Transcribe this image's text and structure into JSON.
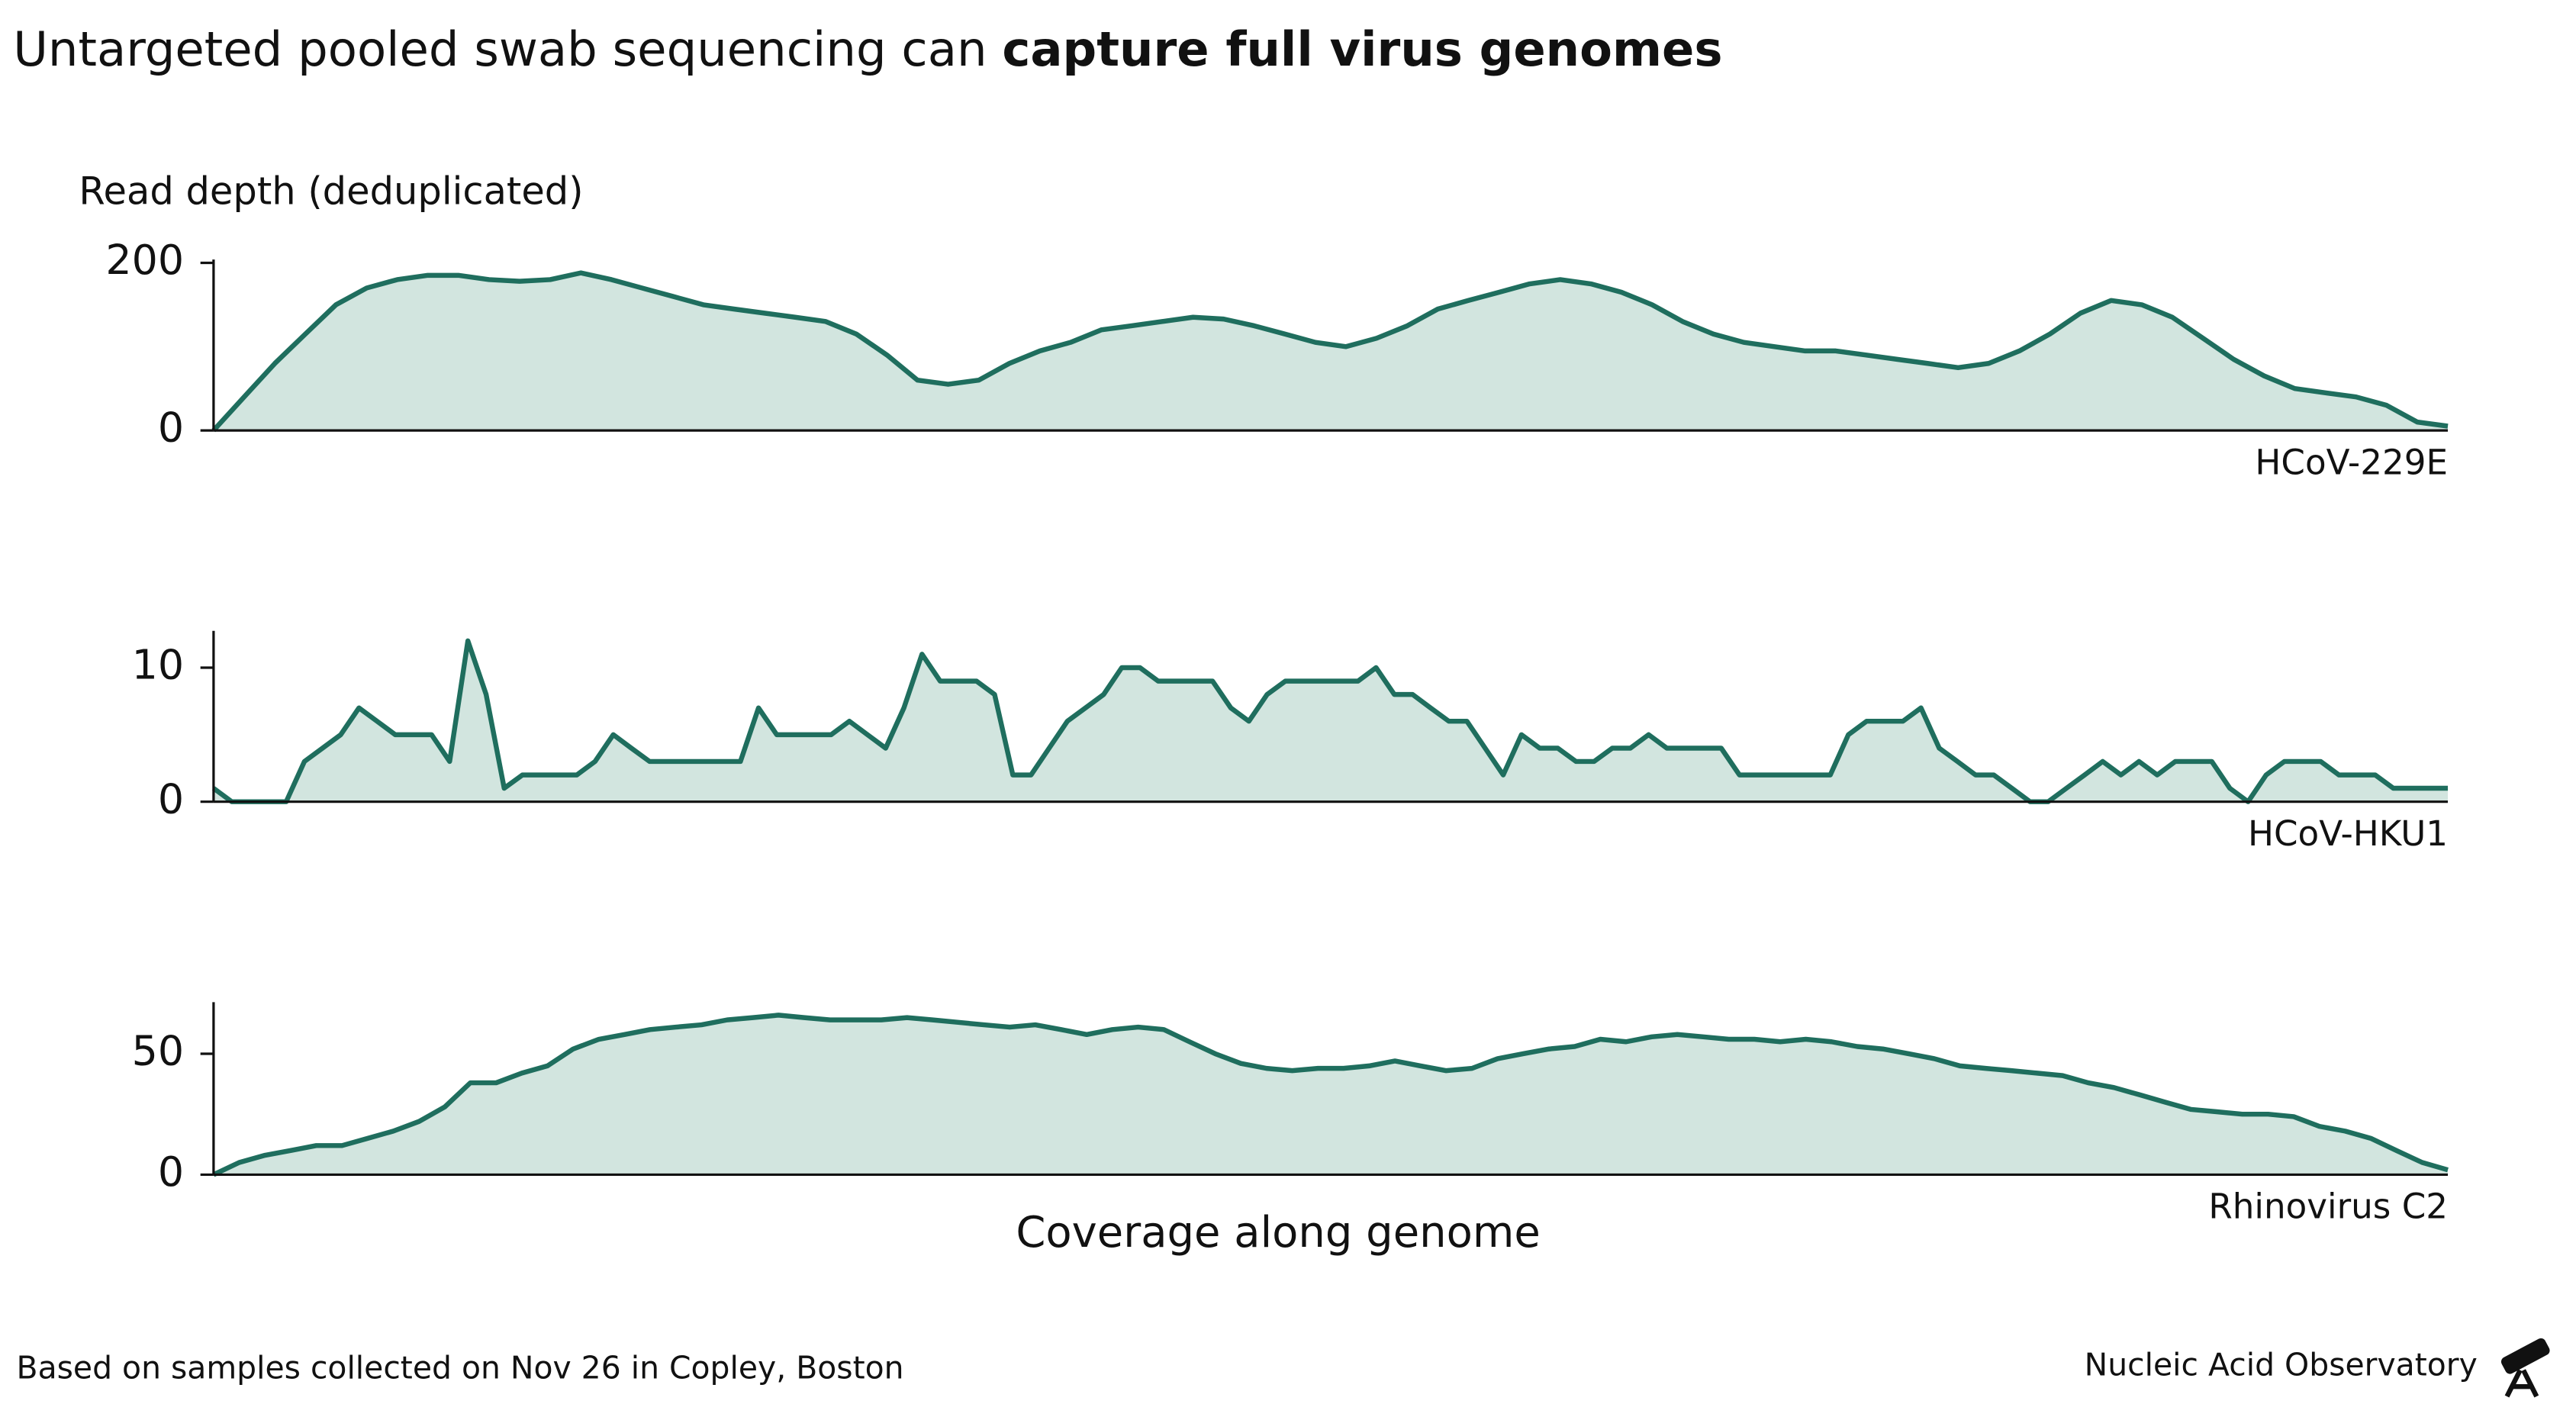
{
  "title": {
    "text": "Untargeted pooled swab sequencing can",
    "emphasis": "capture full virus genomes"
  },
  "source": "Based on samples collected on Nov 26 in Copley, Boston",
  "brand": "Nucleic Acid Observatory",
  "chart_data": [
    {
      "type": "area",
      "name": "HCoV-229E",
      "ylabel": "Read depth (deduplicated)",
      "color": "#1f6e5e",
      "fill": "#d2e5df",
      "ylim": [
        0,
        200
      ],
      "yticks": [
        0,
        200
      ],
      "values": [
        0,
        40,
        80,
        115,
        150,
        170,
        180,
        185,
        185,
        180,
        178,
        180,
        188,
        180,
        170,
        160,
        150,
        145,
        140,
        135,
        130,
        115,
        90,
        60,
        55,
        60,
        80,
        95,
        105,
        120,
        125,
        130,
        135,
        133,
        125,
        115,
        105,
        100,
        110,
        125,
        145,
        155,
        165,
        175,
        180,
        175,
        165,
        150,
        130,
        115,
        105,
        100,
        95,
        95,
        90,
        85,
        80,
        75,
        80,
        95,
        115,
        140,
        155,
        150,
        135,
        110,
        85,
        65,
        50,
        45,
        40,
        30,
        10,
        5
      ]
    },
    {
      "type": "area",
      "name": "HCoV-HKU1",
      "color": "#1f6e5e",
      "fill": "#d2e5df",
      "ylim": [
        0,
        12.5
      ],
      "yticks": [
        0,
        10
      ],
      "values": [
        1,
        0,
        0,
        0,
        0,
        3,
        4,
        5,
        7,
        6,
        5,
        5,
        5,
        3,
        12,
        8,
        1,
        2,
        2,
        2,
        2,
        3,
        5,
        4,
        3,
        3,
        3,
        3,
        3,
        3,
        7,
        5,
        5,
        5,
        5,
        6,
        5,
        4,
        7,
        11,
        9,
        9,
        9,
        8,
        2,
        2,
        4,
        6,
        7,
        8,
        10,
        10,
        9,
        9,
        9,
        9,
        7,
        6,
        8,
        9,
        9,
        9,
        9,
        9,
        10,
        8,
        8,
        7,
        6,
        6,
        4,
        2,
        5,
        4,
        4,
        3,
        3,
        4,
        4,
        5,
        4,
        4,
        4,
        4,
        2,
        2,
        2,
        2,
        2,
        2,
        5,
        6,
        6,
        6,
        7,
        4,
        3,
        2,
        2,
        1,
        0,
        0,
        1,
        2,
        3,
        2,
        3,
        2,
        3,
        3,
        3,
        1,
        0,
        2,
        3,
        3,
        3,
        2,
        2,
        2,
        1,
        1,
        1,
        1
      ]
    },
    {
      "type": "area",
      "name": "Rhinovirus C2",
      "xlabel": "Coverage along genome",
      "color": "#1f6e5e",
      "fill": "#d2e5df",
      "ylim": [
        0,
        70
      ],
      "yticks": [
        0,
        50
      ],
      "values": [
        0,
        5,
        8,
        10,
        12,
        12,
        15,
        18,
        22,
        28,
        38,
        38,
        42,
        45,
        52,
        56,
        58,
        60,
        61,
        62,
        64,
        65,
        66,
        65,
        64,
        64,
        64,
        65,
        64,
        63,
        62,
        61,
        62,
        60,
        58,
        60,
        61,
        60,
        55,
        50,
        46,
        44,
        43,
        44,
        44,
        45,
        47,
        45,
        43,
        44,
        48,
        50,
        52,
        53,
        56,
        55,
        57,
        58,
        57,
        56,
        56,
        55,
        56,
        55,
        53,
        52,
        50,
        48,
        45,
        44,
        43,
        42,
        41,
        38,
        36,
        33,
        30,
        27,
        26,
        25,
        25,
        24,
        20,
        18,
        15,
        10,
        5,
        2
      ]
    }
  ]
}
